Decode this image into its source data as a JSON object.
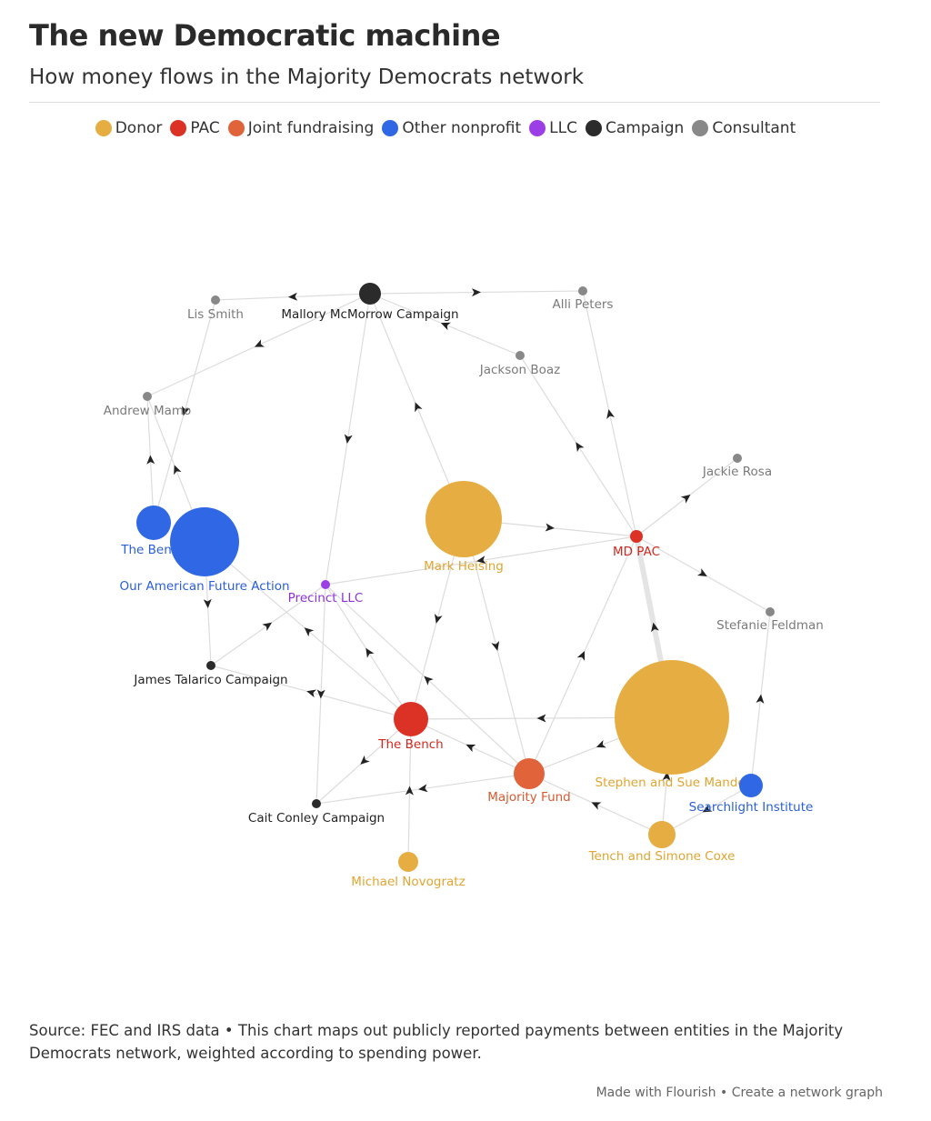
{
  "header": {
    "title": "The new Democratic machine",
    "subtitle": "How money flows in the Majority Democrats network"
  },
  "legend": [
    {
      "label": "Donor",
      "color": "#e6ae42"
    },
    {
      "label": "PAC",
      "color": "#dc3125"
    },
    {
      "label": "Joint fundraising",
      "color": "#e0633a"
    },
    {
      "label": "Other nonprofit",
      "color": "#2f67e5"
    },
    {
      "label": "LLC",
      "color": "#9b3ee6"
    },
    {
      "label": "Campaign",
      "color": "#2b2b2b"
    },
    {
      "label": "Consultant",
      "color": "#888888"
    }
  ],
  "nodes": [
    {
      "label": "Mallory McMorrow Campaign",
      "group": 5
    },
    {
      "label": "Lis Smith",
      "group": 6
    },
    {
      "label": "Alli Peters",
      "group": 6
    },
    {
      "label": "Jackson Boaz",
      "group": 6
    },
    {
      "label": "Andrew Mamo",
      "group": 6
    },
    {
      "label": "Jackie Rosa",
      "group": 6
    },
    {
      "label": "The Bench",
      "group": 3
    },
    {
      "label": "Our American Future Action",
      "group": 3
    },
    {
      "label": "Mark Heising",
      "group": 0
    },
    {
      "label": "MD PAC",
      "group": 1
    },
    {
      "label": "Precinct LLC",
      "group": 4
    },
    {
      "label": "Stefanie Feldman",
      "group": 6
    },
    {
      "label": "James Talarico Campaign",
      "group": 5
    },
    {
      "label": "The Bench",
      "group": 1
    },
    {
      "label": "Stephen and Sue Mandel",
      "group": 0
    },
    {
      "label": "Majority Fund",
      "group": 2
    },
    {
      "label": "Searchlight Institute",
      "group": 3
    },
    {
      "label": "Cait Conley Campaign",
      "group": 5
    },
    {
      "label": "Tench and Simone Coxe",
      "group": 0
    },
    {
      "label": "Michael Novogratz",
      "group": 0
    }
  ],
  "footer": {
    "source": "Source: FEC and IRS data • This chart maps out publicly reported payments between entities in the Majority Democrats network, weighted according to spending power.",
    "credits": "Made with Flourish • Create a network graph"
  }
}
